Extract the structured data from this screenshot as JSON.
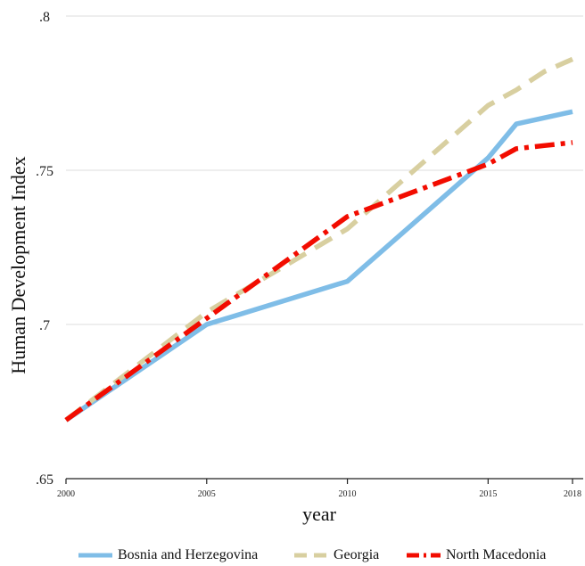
{
  "chart_data": {
    "type": "line",
    "xlabel": "year",
    "ylabel": "Human Development Index",
    "xlim": [
      2000,
      2018
    ],
    "ylim": [
      0.65,
      0.8
    ],
    "x_ticks": [
      2000,
      2005,
      2010,
      2015,
      2018
    ],
    "x_tick_labels": [
      "2000",
      "2005",
      "2010",
      "2015",
      "2018"
    ],
    "y_ticks": [
      0.65,
      0.7,
      0.75,
      0.8
    ],
    "y_tick_labels": [
      ".65",
      ".7",
      ".75",
      ".8"
    ],
    "grid": true,
    "legend_position": "bottom",
    "series": [
      {
        "name": "Bosnia and Herzegovina",
        "color": "#7fbde7",
        "style": "solid",
        "x": [
          2000,
          2005,
          2010,
          2015,
          2016,
          2017,
          2018
        ],
        "values": [
          0.669,
          0.7,
          0.714,
          0.754,
          0.765,
          0.767,
          0.769
        ]
      },
      {
        "name": "Georgia",
        "color": "#d8cfa0",
        "style": "dash",
        "x": [
          2000,
          2005,
          2010,
          2015,
          2016,
          2017,
          2018
        ],
        "values": [
          0.669,
          0.704,
          0.731,
          0.771,
          0.776,
          0.782,
          0.786
        ]
      },
      {
        "name": "North Macedonia",
        "color": "#f20c00",
        "style": "dashdot",
        "x": [
          2000,
          2005,
          2010,
          2015,
          2016,
          2017,
          2018
        ],
        "values": [
          0.669,
          0.702,
          0.735,
          0.752,
          0.757,
          0.758,
          0.759
        ]
      }
    ]
  }
}
